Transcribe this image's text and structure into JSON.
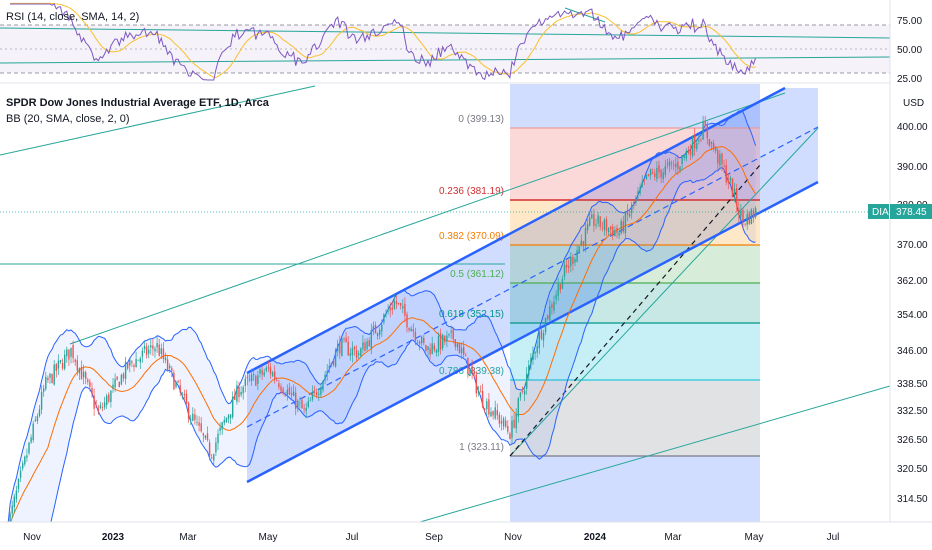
{
  "rsi_pane": {
    "label": "RSI (14, close, SMA, 14, 2)",
    "ticks": [
      "75.00",
      "50.00",
      "25.00"
    ]
  },
  "main_pane": {
    "title": "SPDR Dow Jones Industrial Average ETF, 1D, Arca",
    "indicator": "BB (20, SMA, close, 2, 0)",
    "currency": "USD",
    "ticker_tag": "DIA",
    "last_price": "378.45"
  },
  "colors": {
    "up": "#26a69a",
    "down": "#ef5350",
    "channel": "#2962ff",
    "bb_basis": "#ff6d00",
    "bb_band": "#2962ff",
    "rsi": "#7e57c2",
    "rsi_ma": "#fbc02d"
  },
  "chart_data": {
    "type": "candlestick",
    "title": "SPDR Dow Jones Industrial Average ETF, 1D, Arca",
    "ylabel": "USD",
    "y_ticks": [
      "400.00",
      "390.00",
      "380.00",
      "370.00",
      "362.00",
      "354.00",
      "346.00",
      "338.50",
      "332.50",
      "326.50",
      "320.50",
      "314.50"
    ],
    "x_ticks": [
      "Nov",
      "2023",
      "Mar",
      "May",
      "Jul",
      "Sep",
      "Nov",
      "2024",
      "Mar",
      "May",
      "Jul"
    ],
    "last_close": 378.45,
    "fib_levels": [
      {
        "ratio": "0",
        "price": "399.13",
        "label": "0 (399.13)",
        "color": "#ef9a9a"
      },
      {
        "ratio": "0.236",
        "price": "381.19",
        "label": "0.236 (381.19)",
        "color": "#d32f2f"
      },
      {
        "ratio": "0.382",
        "price": "370.09",
        "label": "0.382 (370.09)",
        "color": "#f57c00"
      },
      {
        "ratio": "0.5",
        "price": "361.12",
        "label": "0.5 (361.12)",
        "color": "#4caf50"
      },
      {
        "ratio": "0.618",
        "price": "352.15",
        "label": "0.618 (352.15)",
        "color": "#009688"
      },
      {
        "ratio": "0.786",
        "price": "339.38",
        "label": "0.786 (339.38)",
        "color": "#26c6da"
      },
      {
        "ratio": "1",
        "price": "323.11",
        "label": "1 (323.11)",
        "color": "#787b86"
      }
    ],
    "price_path": [
      {
        "date": "2022-10-13",
        "close": 300.0
      },
      {
        "date": "2022-11-10",
        "close": 335.0
      },
      {
        "date": "2022-11-30",
        "close": 344.0
      },
      {
        "date": "2022-12-20",
        "close": 328.0
      },
      {
        "date": "2023-01-12",
        "close": 340.0
      },
      {
        "date": "2023-02-02",
        "close": 345.0
      },
      {
        "date": "2023-02-24",
        "close": 330.0
      },
      {
        "date": "2023-03-15",
        "close": 318.0
      },
      {
        "date": "2023-04-05",
        "close": 334.0
      },
      {
        "date": "2023-04-28",
        "close": 339.0
      },
      {
        "date": "2023-05-25",
        "close": 328.0
      },
      {
        "date": "2023-06-20",
        "close": 345.0
      },
      {
        "date": "2023-07-05",
        "close": 343.0
      },
      {
        "date": "2023-08-01",
        "close": 356.0
      },
      {
        "date": "2023-08-24",
        "close": 344.0
      },
      {
        "date": "2023-09-15",
        "close": 347.0
      },
      {
        "date": "2023-10-05",
        "close": 332.0
      },
      {
        "date": "2023-10-27",
        "close": 323.1
      },
      {
        "date": "2023-11-15",
        "close": 345.0
      },
      {
        "date": "2023-12-05",
        "close": 362.0
      },
      {
        "date": "2023-12-28",
        "close": 376.0
      },
      {
        "date": "2024-01-17",
        "close": 373.0
      },
      {
        "date": "2024-02-08",
        "close": 387.0
      },
      {
        "date": "2024-03-01",
        "close": 390.0
      },
      {
        "date": "2024-03-21",
        "close": 399.1
      },
      {
        "date": "2024-04-10",
        "close": 385.0
      },
      {
        "date": "2024-04-19",
        "close": 376.0
      },
      {
        "date": "2024-04-30",
        "close": 378.45
      }
    ],
    "rsi": {
      "name": "RSI (14, close, SMA, 14, 2)",
      "levels": [
        70,
        50,
        30
      ],
      "y_ticks": [
        75,
        50,
        25
      ]
    }
  }
}
